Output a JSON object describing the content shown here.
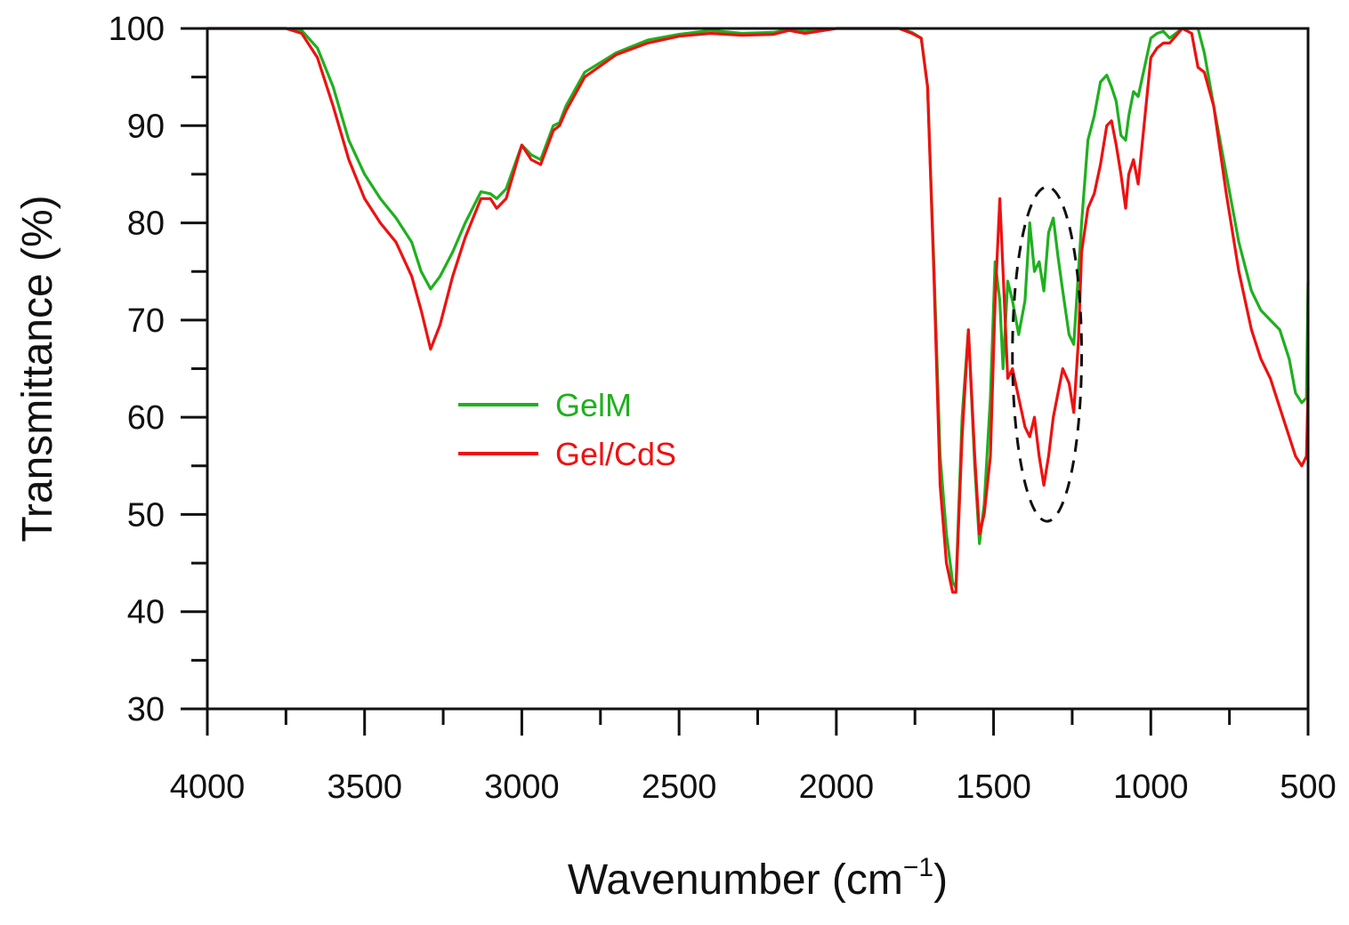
{
  "chart_data": {
    "type": "line",
    "title": "",
    "xlabel_main": "Wavenumber (cm",
    "xlabel_sup": "−1",
    "xlabel_tail": ")",
    "ylabel": "Transmittance (%)",
    "xlim": [
      4000,
      500
    ],
    "ylim": [
      30,
      100
    ],
    "x_ticks": [
      4000,
      3500,
      3000,
      2500,
      2000,
      1500,
      1000,
      500
    ],
    "y_ticks": [
      30,
      40,
      50,
      60,
      70,
      80,
      90,
      100
    ],
    "x_tick_labels": [
      "4000",
      "3500",
      "3000",
      "2500",
      "2000",
      "1500",
      "1000",
      "500"
    ],
    "y_tick_labels": [
      "30",
      "40",
      "50",
      "60",
      "70",
      "80",
      "90",
      "100"
    ],
    "x_minor_step": 250,
    "y_minor_step": 5,
    "legend_position": "center-left",
    "annotation": {
      "type": "dashed-ellipse",
      "label": "region 1450–1200 cm−1",
      "x_center": 1330,
      "y_center": 66.5,
      "x_halfwidth": 110,
      "y_halfwidth": 17.2
    },
    "series": [
      {
        "name": "GelM",
        "color": "#1fb01f",
        "x": [
          4000,
          3750,
          3700,
          3650,
          3600,
          3550,
          3500,
          3450,
          3400,
          3350,
          3320,
          3290,
          3260,
          3220,
          3180,
          3130,
          3100,
          3080,
          3050,
          3000,
          2970,
          2940,
          2900,
          2880,
          2860,
          2800,
          2700,
          2600,
          2500,
          2400,
          2300,
          2200,
          2150,
          2100,
          2000,
          1900,
          1800,
          1760,
          1730,
          1710,
          1690,
          1670,
          1650,
          1630,
          1620,
          1600,
          1580,
          1560,
          1545,
          1530,
          1510,
          1495,
          1480,
          1470,
          1455,
          1440,
          1420,
          1400,
          1385,
          1370,
          1355,
          1340,
          1325,
          1310,
          1295,
          1280,
          1260,
          1245,
          1230,
          1220,
          1200,
          1180,
          1160,
          1140,
          1125,
          1110,
          1095,
          1080,
          1070,
          1055,
          1040,
          1020,
          1000,
          980,
          960,
          940,
          900,
          870,
          850,
          830,
          800,
          760,
          720,
          680,
          650,
          620,
          590,
          560,
          540,
          520,
          505,
          500
        ],
        "y": [
          100,
          100,
          99.8,
          98,
          94,
          88.5,
          85,
          82.5,
          80.5,
          78,
          75,
          73.2,
          74.5,
          77,
          80,
          83.2,
          83,
          82.5,
          83.5,
          88,
          87,
          86.5,
          90,
          90.3,
          92,
          95.5,
          97.5,
          98.8,
          99.4,
          99.8,
          99.5,
          99.6,
          99.9,
          99.7,
          100,
          100,
          100,
          99.6,
          99,
          94,
          76,
          56,
          48,
          43,
          42.5,
          60,
          69,
          55,
          47,
          51,
          62,
          76,
          72,
          65,
          74,
          72,
          68.5,
          72,
          80,
          75,
          76,
          73,
          79,
          80.5,
          76.5,
          73,
          68.5,
          67.5,
          75,
          80,
          88.5,
          91,
          94.5,
          95.2,
          94,
          92.5,
          89,
          88.5,
          91,
          93.5,
          93,
          96,
          99,
          99.5,
          99.7,
          99,
          100,
          100,
          100,
          97.5,
          92,
          85,
          78,
          73,
          71,
          70,
          69,
          66,
          62.5,
          61.5,
          62,
          74
        ]
      },
      {
        "name": "Gel/CdS",
        "color": "#ee1111",
        "x": [
          4000,
          3750,
          3700,
          3650,
          3600,
          3550,
          3500,
          3450,
          3400,
          3350,
          3320,
          3290,
          3260,
          3220,
          3180,
          3130,
          3100,
          3080,
          3050,
          3000,
          2970,
          2940,
          2900,
          2880,
          2860,
          2800,
          2700,
          2600,
          2500,
          2400,
          2300,
          2200,
          2150,
          2100,
          2000,
          1900,
          1800,
          1760,
          1730,
          1710,
          1690,
          1670,
          1650,
          1630,
          1620,
          1600,
          1580,
          1560,
          1545,
          1530,
          1510,
          1495,
          1480,
          1470,
          1455,
          1440,
          1420,
          1400,
          1385,
          1370,
          1355,
          1340,
          1325,
          1310,
          1295,
          1280,
          1260,
          1245,
          1230,
          1220,
          1200,
          1180,
          1160,
          1140,
          1125,
          1110,
          1095,
          1080,
          1070,
          1055,
          1040,
          1020,
          1000,
          980,
          960,
          940,
          900,
          870,
          850,
          830,
          800,
          760,
          720,
          680,
          650,
          620,
          590,
          560,
          540,
          520,
          505,
          500
        ],
        "y": [
          100,
          100,
          99.5,
          97,
          92,
          86.5,
          82.5,
          80,
          78,
          74.5,
          71,
          67,
          69.5,
          74.5,
          78.5,
          82.5,
          82.5,
          81.5,
          82.5,
          88,
          86.5,
          86,
          89.5,
          90,
          91.5,
          95,
          97.3,
          98.5,
          99.2,
          99.5,
          99.3,
          99.4,
          99.8,
          99.5,
          100,
          100,
          100,
          99.5,
          99,
          94,
          75,
          53,
          45,
          42,
          42,
          58,
          69,
          56,
          48,
          50,
          56,
          72,
          82.5,
          75,
          64,
          65,
          62,
          59,
          58,
          60,
          56,
          53,
          56,
          60,
          62.5,
          65,
          63.5,
          60.5,
          68,
          77,
          81.5,
          83,
          86,
          90,
          90.5,
          88,
          85,
          81.5,
          85,
          86.5,
          84,
          90.5,
          97,
          98,
          98.5,
          98.5,
          100,
          99.5,
          96,
          95.5,
          92,
          83,
          75,
          69,
          66,
          64,
          61,
          58,
          56,
          55,
          56,
          63
        ]
      }
    ]
  }
}
